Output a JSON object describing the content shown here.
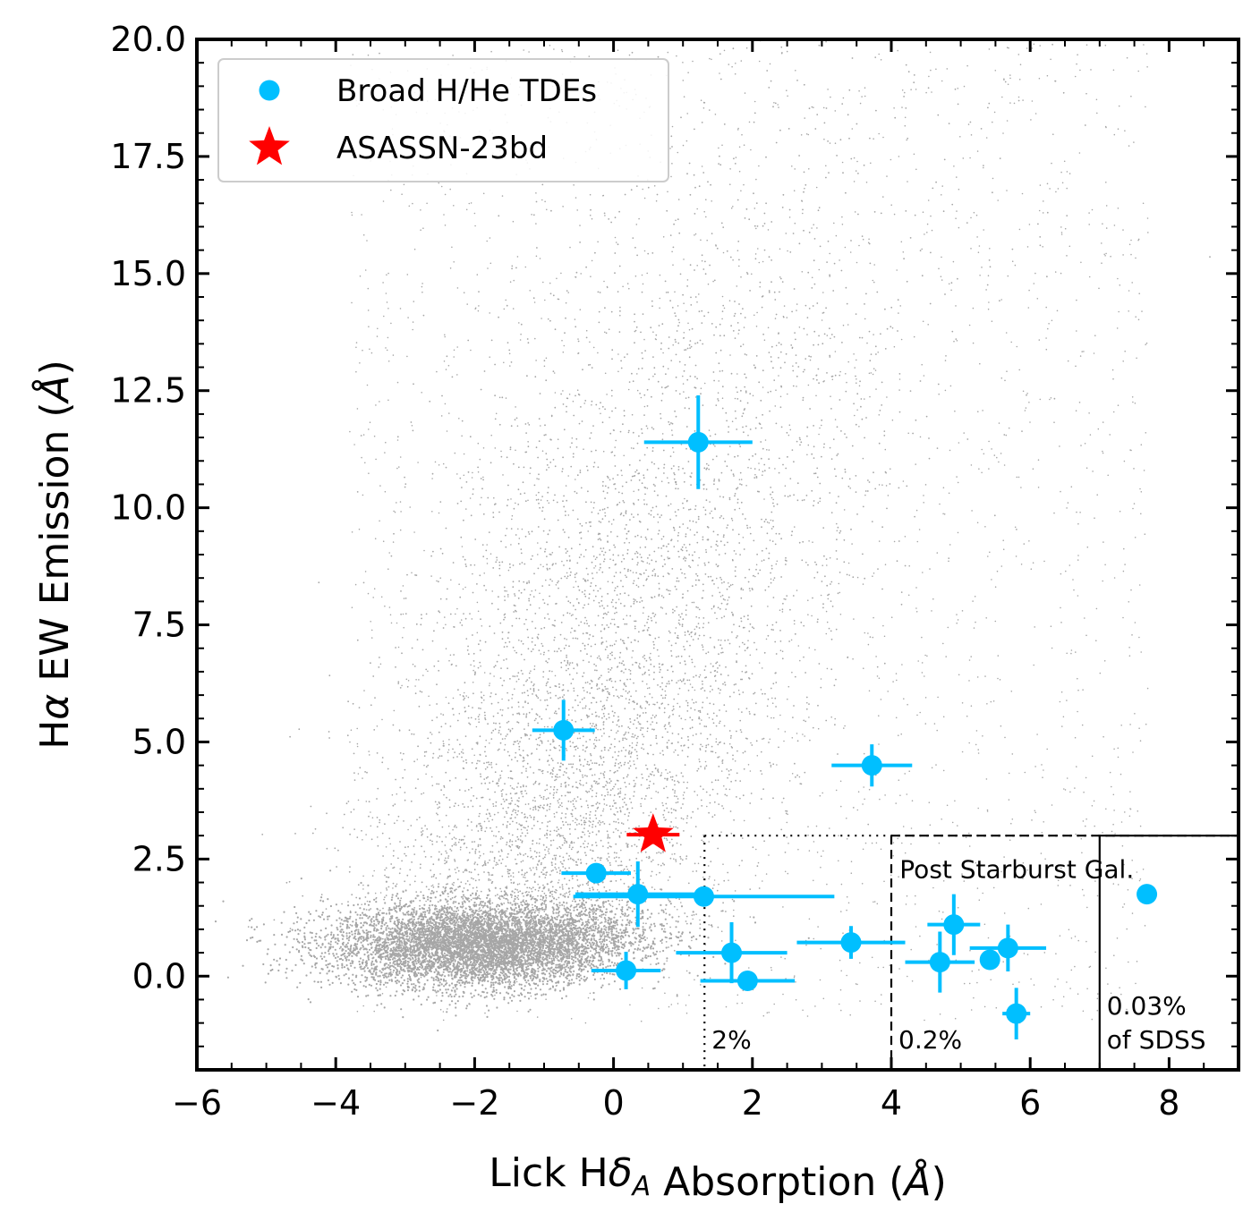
{
  "chart_data": {
    "type": "scatter",
    "xlabel": "Lick Hδ_A Absorption (Å)",
    "ylabel": "Hα EW Emission (Å)",
    "xlim": [
      -6,
      9
    ],
    "ylim": [
      -2,
      20
    ],
    "xticks": [
      -6,
      -4,
      -2,
      0,
      2,
      4,
      6,
      8
    ],
    "xtick_labels": [
      "−6",
      "−4",
      "−2",
      "0",
      "2",
      "4",
      "6",
      "8"
    ],
    "yticks": [
      0,
      2.5,
      5,
      7.5,
      10,
      12.5,
      15,
      17.5,
      20
    ],
    "ytick_labels": [
      "0.0",
      "2.5",
      "5.0",
      "7.5",
      "10.0",
      "12.5",
      "15.0",
      "17.5",
      "20.0"
    ],
    "grid": false,
    "legend_position": "top-left",
    "colors": {
      "tde": "#00bfff",
      "star": "#ff0000",
      "background": "#000000"
    },
    "background_population": {
      "description_visible": false,
      "core_center": [
        -1.9,
        0.65
      ],
      "core_spread": [
        1.1,
        0.45
      ],
      "tail_center": [
        1.2,
        8.0
      ]
    },
    "series": [
      {
        "name": "Broad H/He TDEs",
        "marker": "circle",
        "points": [
          {
            "x": 1.22,
            "y": 11.4,
            "xerr": 0.78,
            "yerr": 1.0
          },
          {
            "x": -0.72,
            "y": 5.25,
            "xerr": 0.45,
            "yerr": 0.65
          },
          {
            "x": 3.72,
            "y": 4.5,
            "xerr": 0.58,
            "yerr": 0.45
          },
          {
            "x": -0.25,
            "y": 2.2,
            "xerr": 0.5,
            "yerr": 0.0
          },
          {
            "x": 0.35,
            "y": 1.75,
            "xerr": 0.9,
            "yerr": 0.7
          },
          {
            "x": 1.3,
            "y": 1.7,
            "xerr": 1.88,
            "yerr": 0.0
          },
          {
            "x": 1.7,
            "y": 0.5,
            "xerr": 0.8,
            "yerr": 0.65
          },
          {
            "x": 0.18,
            "y": 0.12,
            "xerr": 0.5,
            "yerr": 0.4
          },
          {
            "x": 1.93,
            "y": -0.1,
            "xerr": 0.68,
            "yerr": 0.0
          },
          {
            "x": 3.42,
            "y": 0.72,
            "xerr": 0.78,
            "yerr": 0.35
          },
          {
            "x": 4.7,
            "y": 0.3,
            "xerr": 0.5,
            "yerr": 0.65
          },
          {
            "x": 4.9,
            "y": 1.1,
            "xerr": 0.38,
            "yerr": 0.65
          },
          {
            "x": 5.42,
            "y": 0.35,
            "xerr": 0.0,
            "yerr": 0.0
          },
          {
            "x": 5.68,
            "y": 0.6,
            "xerr": 0.55,
            "yerr": 0.5
          },
          {
            "x": 5.8,
            "y": -0.8,
            "xerr": 0.2,
            "yerr": 0.55
          },
          {
            "x": 7.68,
            "y": 1.75,
            "xerr": 0.0,
            "yerr": 0.0
          }
        ]
      },
      {
        "name": "ASASSN-23bd",
        "marker": "star",
        "points": [
          {
            "x": 0.57,
            "y": 3.02,
            "xerr": 0.38,
            "yerr": 0.2
          }
        ]
      }
    ],
    "regions": [
      {
        "label": "2%",
        "x_min": 1.31,
        "y_max": 3.0,
        "linestyle": "dotted"
      },
      {
        "label": "0.2%",
        "x_min": 4.0,
        "y_max": 3.0,
        "linestyle": "dashed"
      },
      {
        "label_lines": [
          "0.03%",
          "of SDSS"
        ],
        "x_min": 7.0,
        "y_max": 3.0,
        "linestyle": "solid"
      }
    ],
    "annotations": [
      {
        "text": "Post Starburst Gal.",
        "x": 4.12,
        "y": 2.1
      }
    ]
  }
}
